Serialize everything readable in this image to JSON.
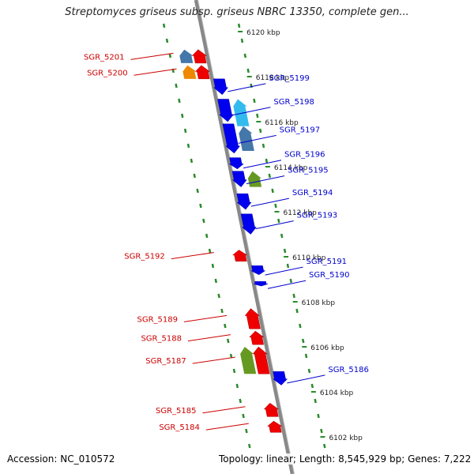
{
  "title": "Streptomyces griseus subsp. griseus NBRC 13350, complete gen...",
  "footer": {
    "accession_label": "Accession:",
    "accession": "NC_010572",
    "topology_label": "Topology:",
    "topology": "linear;",
    "length_label": "Length:",
    "length": "8,545,929 bp;",
    "genes_label": "Genes:",
    "genes": "7,222"
  },
  "colors": {
    "forward_strand": "#0000ee",
    "reverse_strand": "#ee0000",
    "feature_light_blue": "#33bbee",
    "feature_steel_blue": "#4477aa",
    "feature_orange": "#ee8800",
    "feature_olive": "#669922",
    "backbone": "#888888",
    "scale_dots": "#2a8a2a",
    "forward_label": "#0000cc",
    "reverse_label": "#cc0000"
  },
  "scale_ticks": [
    "6120 kbp",
    "6118 kbp",
    "6116 kbp",
    "6114 kbp",
    "6112 kbp",
    "6110 kbp",
    "6108 kbp",
    "6106 kbp",
    "6104 kbp",
    "6102 kbp"
  ],
  "genes": [
    {
      "label": "SGR_5201",
      "strand": "reverse",
      "color": "#ee0000",
      "start_kbp": 6119.2,
      "end_kbp": 6118.6
    },
    {
      "label": "SGR_5200",
      "strand": "reverse",
      "color": "#ee0000",
      "start_kbp": 6118.5,
      "end_kbp": 6117.9
    },
    {
      "label": "SGR_5199",
      "strand": "forward",
      "color": "#0000ee",
      "start_kbp": 6117.9,
      "end_kbp": 6117.2
    },
    {
      "label": "SGR_5198",
      "strand": "forward",
      "color": "#0000ee",
      "start_kbp": 6117.0,
      "end_kbp": 6116.0
    },
    {
      "label": "SGR_5197",
      "strand": "forward",
      "color": "#0000ee",
      "start_kbp": 6115.9,
      "end_kbp": 6114.6
    },
    {
      "label": "SGR_5196",
      "strand": "forward",
      "color": "#0000ee",
      "start_kbp": 6114.4,
      "end_kbp": 6113.9
    },
    {
      "label": "SGR_5195",
      "strand": "forward",
      "color": "#0000ee",
      "start_kbp": 6113.8,
      "end_kbp": 6113.1
    },
    {
      "label": "SGR_5194",
      "strand": "forward",
      "color": "#0000ee",
      "start_kbp": 6112.8,
      "end_kbp": 6112.1
    },
    {
      "label": "SGR_5193",
      "strand": "forward",
      "color": "#0000ee",
      "start_kbp": 6111.9,
      "end_kbp": 6111.0
    },
    {
      "label": "SGR_5192",
      "strand": "reverse",
      "color": "#ee0000",
      "start_kbp": 6110.3,
      "end_kbp": 6109.8
    },
    {
      "label": "SGR_5191",
      "strand": "forward",
      "color": "#0000ee",
      "start_kbp": 6109.6,
      "end_kbp": 6109.2
    },
    {
      "label": "SGR_5190",
      "strand": "forward",
      "color": "#0000ee",
      "start_kbp": 6108.9,
      "end_kbp": 6108.7
    },
    {
      "label": "SGR_5189",
      "strand": "reverse",
      "color": "#ee0000",
      "start_kbp": 6107.7,
      "end_kbp": 6106.8
    },
    {
      "label": "SGR_5188",
      "strand": "reverse",
      "color": "#ee0000",
      "start_kbp": 6106.7,
      "end_kbp": 6106.1
    },
    {
      "label": "SGR_5187",
      "strand": "reverse",
      "color": "#ee0000",
      "start_kbp": 6106.0,
      "end_kbp": 6104.8
    },
    {
      "label": "SGR_5186",
      "strand": "forward",
      "color": "#0000ee",
      "start_kbp": 6104.9,
      "end_kbp": 6104.3
    },
    {
      "label": "SGR_5185",
      "strand": "reverse",
      "color": "#ee0000",
      "start_kbp": 6103.5,
      "end_kbp": 6102.9
    },
    {
      "label": "SGR_5184",
      "strand": "reverse",
      "color": "#ee0000",
      "start_kbp": 6102.7,
      "end_kbp": 6102.2
    }
  ],
  "features": [
    {
      "strand": "reverse",
      "color": "#4477aa",
      "start_kbp": 6119.2,
      "end_kbp": 6118.6
    },
    {
      "strand": "reverse",
      "color": "#ee8800",
      "start_kbp": 6118.5,
      "end_kbp": 6117.9
    },
    {
      "strand": "forward",
      "color": "#33bbee",
      "start_kbp": 6117.0,
      "end_kbp": 6115.8
    },
    {
      "strand": "forward",
      "color": "#4477aa",
      "start_kbp": 6115.8,
      "end_kbp": 6114.7
    },
    {
      "strand": "forward",
      "color": "#669922",
      "start_kbp": 6113.8,
      "end_kbp": 6113.1
    },
    {
      "strand": "reverse",
      "color": "#669922",
      "start_kbp": 6106.0,
      "end_kbp": 6104.8
    }
  ]
}
